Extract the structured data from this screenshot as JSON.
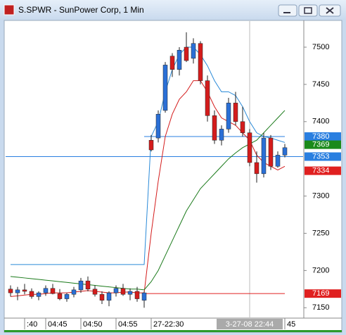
{
  "window_title": "S.SPWR - SunPower Corp, 1 Min",
  "chart_data": {
    "type": "candlestick",
    "open": [
      7175,
      7170,
      7174,
      7172,
      7165,
      7170,
      7176,
      7169,
      7162,
      7168,
      7174,
      7186,
      7175,
      7168,
      7160,
      7170,
      7176,
      7168,
      7172,
      7160,
      7375,
      7378,
      7415,
      7488,
      7470,
      7500,
      7485,
      7505,
      7455,
      7408,
      7375,
      7390,
      7425,
      7400,
      7385,
      7345,
      7330,
      7378,
      7340,
      7355
    ],
    "high": [
      7180,
      7178,
      7182,
      7176,
      7172,
      7180,
      7182,
      7175,
      7170,
      7178,
      7190,
      7192,
      7180,
      7172,
      7172,
      7180,
      7182,
      7176,
      7178,
      7172,
      7382,
      7415,
      7480,
      7492,
      7500,
      7520,
      7512,
      7508,
      7462,
      7415,
      7395,
      7432,
      7440,
      7420,
      7390,
      7360,
      7385,
      7382,
      7360,
      7370
    ],
    "low": [
      7165,
      7160,
      7168,
      7162,
      7160,
      7166,
      7168,
      7160,
      7158,
      7164,
      7170,
      7172,
      7165,
      7155,
      7152,
      7165,
      7166,
      7160,
      7158,
      7150,
      7360,
      7372,
      7412,
      7460,
      7462,
      7480,
      7478,
      7450,
      7400,
      7370,
      7368,
      7385,
      7395,
      7380,
      7340,
      7318,
      7325,
      7335,
      7338,
      7352
    ],
    "close": [
      7170,
      7174,
      7172,
      7165,
      7170,
      7176,
      7169,
      7162,
      7168,
      7174,
      7186,
      7175,
      7168,
      7160,
      7170,
      7176,
      7168,
      7172,
      7162,
      7170,
      7362,
      7410,
      7476,
      7470,
      7496,
      7482,
      7505,
      7455,
      7408,
      7375,
      7390,
      7425,
      7400,
      7385,
      7345,
      7330,
      7378,
      7340,
      7355,
      7365
    ],
    "up_color": "#2a6fd6",
    "down_color": "#d41c1c",
    "series": [
      {
        "color": "#2a8ad8",
        "values": [
          7208,
          7208,
          7208,
          7208,
          7208,
          7208,
          7208,
          7208,
          7208,
          7208,
          7208,
          7208,
          7208,
          7208,
          7208,
          7208,
          7208,
          7208,
          7208,
          7208,
          7380,
          7400,
          7440,
          7470,
          7490,
          7500,
          7500,
          7490,
          7475,
          7455,
          7440,
          7440,
          7435,
          7420,
          7400,
          7385,
          7380,
          7378,
          7375,
          7372
        ]
      },
      {
        "color": "#d41c1c",
        "values": [
          7165,
          7166,
          7167,
          7168,
          7168,
          7169,
          7170,
          7170,
          7170,
          7171,
          7172,
          7173,
          7172,
          7171,
          7170,
          7170,
          7171,
          7171,
          7170,
          7170,
          7250,
          7320,
          7380,
          7410,
          7430,
          7440,
          7455,
          7455,
          7440,
          7420,
          7405,
          7400,
          7395,
          7385,
          7375,
          7355,
          7345,
          7340,
          7335,
          7340
        ]
      },
      {
        "color": "#1a7a1a",
        "values": [
          7192,
          7191,
          7190,
          7189,
          7188,
          7187,
          7186,
          7185,
          7184,
          7183,
          7182,
          7181,
          7180,
          7179,
          7178,
          7177,
          7176,
          7175,
          7175,
          7174,
          7185,
          7200,
          7220,
          7240,
          7260,
          7280,
          7295,
          7310,
          7320,
          7330,
          7340,
          7350,
          7358,
          7365,
          7370,
          7375,
          7385,
          7395,
          7405,
          7415
        ]
      }
    ],
    "ylim": [
      7137,
      7535
    ],
    "yticks": [
      7150,
      7200,
      7250,
      7300,
      7400,
      7450,
      7500
    ],
    "xticks": [
      {
        "value": 2,
        "label": ":40"
      },
      {
        "value": 5,
        "label": "04:45"
      },
      {
        "value": 10,
        "label": "04:50"
      },
      {
        "value": 15,
        "label": "04:55"
      },
      {
        "value": 20,
        "label": "27-22:30"
      },
      {
        "value": 39,
        "label": "45"
      }
    ],
    "price_levels": [
      {
        "value": 7380,
        "color": "#2a7fe0",
        "line": "partial"
      },
      {
        "value": 7369,
        "color": "#1a8a1a",
        "line": "none"
      },
      {
        "value": 7353,
        "color": "#2a7fe0",
        "line": "full"
      },
      {
        "value": 7334,
        "color": "#e02020",
        "line": "none"
      },
      {
        "value": 7169,
        "color": "#e02020",
        "line": "partial"
      }
    ],
    "crosshair": {
      "x": 34,
      "label": "3-27-08 22:44"
    }
  }
}
